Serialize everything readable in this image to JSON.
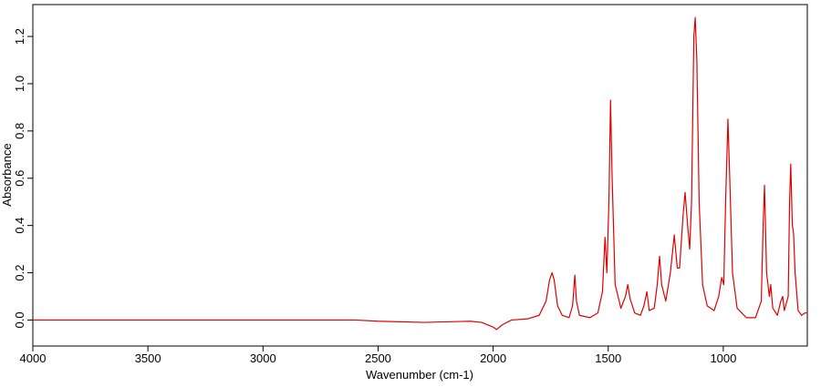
{
  "chart_data": {
    "type": "line",
    "x_label": "Wavenumber (cm-1)",
    "y_label": "Absorbance",
    "xlim": [
      4000,
      635
    ],
    "ylim": [
      -0.11,
      1.335
    ],
    "xticks": [
      4000,
      3500,
      3000,
      2500,
      2000,
      1500,
      1000
    ],
    "yticks": [
      {
        "value": 0,
        "label": "0.0"
      },
      {
        "value": 0.2,
        "label": "0.2"
      },
      {
        "value": 0.4,
        "label": "0.4"
      },
      {
        "value": 0.6,
        "label": "0.6"
      },
      {
        "value": 0.8,
        "label": "0.8"
      },
      {
        "value": 1,
        "label": "1.0"
      },
      {
        "value": 1.2,
        "label": "1.2"
      }
    ],
    "series": [
      {
        "color": "#e00000",
        "x": [
          4000,
          3000,
          2600,
          2500,
          2300,
          2100,
          2050,
          2000,
          1985,
          1960,
          1920,
          1850,
          1800,
          1770,
          1755,
          1744,
          1735,
          1720,
          1700,
          1670,
          1655,
          1645,
          1638,
          1625,
          1580,
          1545,
          1525,
          1514,
          1506,
          1497,
          1490,
          1483,
          1470,
          1445,
          1425,
          1415,
          1405,
          1385,
          1360,
          1345,
          1332,
          1322,
          1300,
          1287,
          1277,
          1268,
          1250,
          1230,
          1213,
          1200,
          1190,
          1175,
          1166,
          1155,
          1146,
          1138,
          1128,
          1122,
          1115,
          1105,
          1090,
          1070,
          1040,
          1020,
          1007,
          998,
          990,
          980,
          972,
          960,
          940,
          900,
          860,
          835,
          827,
          821,
          812,
          800,
          794,
          785,
          765,
          750,
          742,
          735,
          718,
          712,
          707,
          700,
          695,
          688,
          675,
          660,
          645,
          635
        ],
        "values": [
          0,
          0,
          0,
          -0.005,
          -0.01,
          -0.005,
          -0.01,
          -0.03,
          -0.04,
          -0.02,
          0,
          0.005,
          0.02,
          0.08,
          0.17,
          0.2,
          0.17,
          0.06,
          0.02,
          0.01,
          0.06,
          0.19,
          0.08,
          0.02,
          0.01,
          0.03,
          0.12,
          0.35,
          0.2,
          0.5,
          0.93,
          0.6,
          0.15,
          0.05,
          0.1,
          0.15,
          0.09,
          0.03,
          0.02,
          0.06,
          0.12,
          0.04,
          0.05,
          0.15,
          0.27,
          0.15,
          0.08,
          0.2,
          0.36,
          0.22,
          0.22,
          0.44,
          0.54,
          0.4,
          0.3,
          0.5,
          1.2,
          1.28,
          1.1,
          0.5,
          0.15,
          0.06,
          0.04,
          0.1,
          0.18,
          0.15,
          0.5,
          0.85,
          0.6,
          0.2,
          0.05,
          0.01,
          0.01,
          0.08,
          0.4,
          0.57,
          0.2,
          0.1,
          0.15,
          0.05,
          0.02,
          0.08,
          0.1,
          0.04,
          0.1,
          0.5,
          0.66,
          0.4,
          0.37,
          0.2,
          0.04,
          0.02,
          0.03,
          0.03
        ]
      }
    ]
  }
}
